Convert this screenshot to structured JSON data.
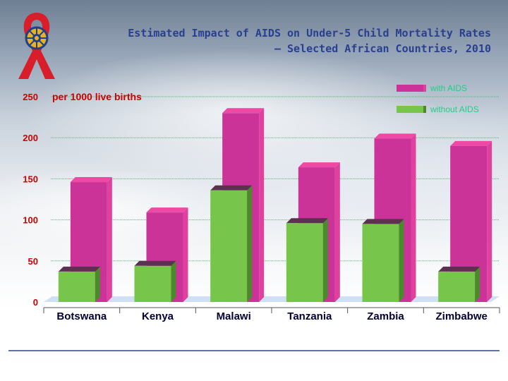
{
  "title_lines": [
    "Estimated Impact of AIDS on Under-5 Child Mortality Rates",
    "– Selected African Countries, 2010"
  ],
  "colors": {
    "with_aids": "#cc3399",
    "with_aids_side": "#e0409e",
    "with_aids_top": "#ee4aa5",
    "without_aids": "#77c64b",
    "without_aids_side": "#4a8a2a",
    "without_aids_top": "#5c3050",
    "grid": "#55b070",
    "axis_text": "#cc0000",
    "label_text": "#000033",
    "legend_text": "#22cc88",
    "floor": "#cfe0f5"
  },
  "chart_data": {
    "type": "bar",
    "title": "Estimated Impact of AIDS on Under-5 Child Mortality Rates – Selected African Countries, 2010",
    "ylabel": "per 1000 live births",
    "categories": [
      "Botswana",
      "Kenya",
      "Malawi",
      "Tanzania",
      "Zambia",
      "Zimbabwe"
    ],
    "series": [
      {
        "name": "with AIDS",
        "values": [
          146,
          109,
          230,
          164,
          199,
          190
        ]
      },
      {
        "name": "without AIDS",
        "values": [
          37,
          44,
          136,
          96,
          95,
          37
        ]
      }
    ],
    "ylim": [
      0,
      250
    ],
    "yticks": [
      "0",
      "50",
      "100",
      "150",
      "200",
      "250"
    ],
    "grid": true,
    "legend": "top-right"
  }
}
